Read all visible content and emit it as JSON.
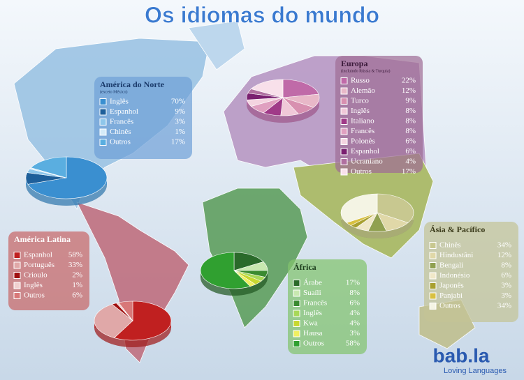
{
  "title": "Os idiomas do mundo",
  "logo": {
    "name": "bab.la",
    "tagline": "Loving Languages"
  },
  "chart_data": [
    {
      "type": "pie",
      "title": "América do Norte",
      "subtitle": "(exceto México)",
      "categories": [
        "Inglês",
        "Espanhol",
        "Francês",
        "Chinês",
        "Outros"
      ],
      "values": [
        70,
        9,
        3,
        1,
        17
      ],
      "value_labels": [
        "70%",
        "9%",
        "3%",
        "1%",
        "17%"
      ],
      "colors": [
        "#3a8fd0",
        "#1e5f9a",
        "#8ec6ea",
        "#d4ebf8",
        "#5aaee0"
      ]
    },
    {
      "type": "pie",
      "title": "Europa",
      "subtitle": "(incluindo Rússia & Turquia)",
      "categories": [
        "Russo",
        "Alemão",
        "Turco",
        "Inglês",
        "Italiano",
        "Francês",
        "Polonês",
        "Espanhol",
        "Ucraniano",
        "Outros"
      ],
      "values": [
        22,
        12,
        9,
        8,
        8,
        8,
        6,
        6,
        4,
        17
      ],
      "value_labels": [
        "22%",
        "12%",
        "9%",
        "8%",
        "8%",
        "8%",
        "6%",
        "6%",
        "4%",
        "17%"
      ],
      "colors": [
        "#c06aa8",
        "#e8b8c8",
        "#d890b0",
        "#f0c8d8",
        "#a03a88",
        "#e0a0c0",
        "#f4d4e0",
        "#7a2070",
        "#b070a0",
        "#f8e0ea"
      ]
    },
    {
      "type": "pie",
      "title": "América Latina",
      "categories": [
        "Espanhol",
        "Português",
        "Crioulo",
        "Inglês",
        "Outros"
      ],
      "values": [
        58,
        33,
        2,
        1,
        6
      ],
      "value_labels": [
        "58%",
        "33%",
        "2%",
        "1%",
        "6%"
      ],
      "colors": [
        "#c02020",
        "#e0a8a8",
        "#a01010",
        "#f0d0d0",
        "#d87878"
      ]
    },
    {
      "type": "pie",
      "title": "África",
      "categories": [
        "Árabe",
        "Suaíli",
        "Francês",
        "Inglês",
        "Kwa",
        "Hausa",
        "Outros"
      ],
      "values": [
        17,
        8,
        6,
        4,
        4,
        3,
        58
      ],
      "value_labels": [
        "17%",
        "8%",
        "6%",
        "4%",
        "4%",
        "3%",
        "58%"
      ],
      "colors": [
        "#2a6a2a",
        "#c8e8b0",
        "#3a8a30",
        "#a8d858",
        "#c8d830",
        "#f0f060",
        "#30a030"
      ]
    },
    {
      "type": "pie",
      "title": "Ásia & Pacífico",
      "categories": [
        "Chinês",
        "Hindustâni",
        "Bengali",
        "Indonésio",
        "Japonês",
        "Panjabi",
        "Outros"
      ],
      "values": [
        34,
        12,
        8,
        6,
        3,
        3,
        34
      ],
      "value_labels": [
        "34%",
        "12%",
        "8%",
        "6%",
        "3%",
        "3%",
        "34%"
      ],
      "colors": [
        "#c8c890",
        "#e0d8a8",
        "#90a050",
        "#f0e8c8",
        "#a8a030",
        "#d8c040",
        "#f4f4e4"
      ]
    }
  ]
}
